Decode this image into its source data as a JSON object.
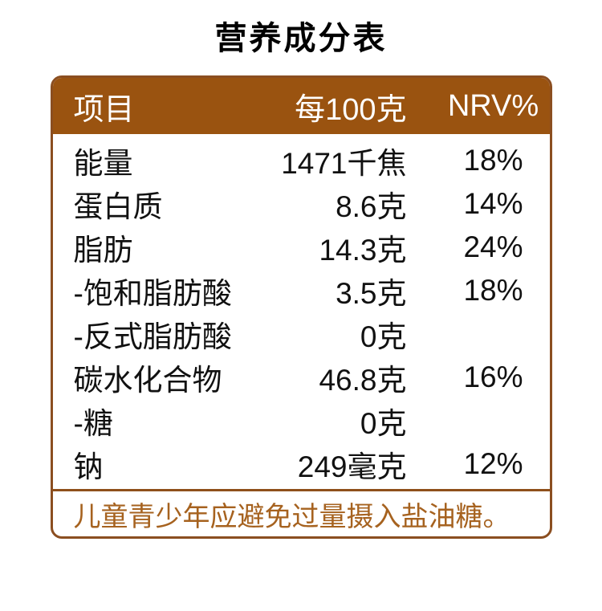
{
  "title": "营养成分表",
  "colors": {
    "header_bg": "#9A5310",
    "header_text": "#FFFFFF",
    "card_border": "#8B4E20",
    "divider": "#8F4F1B",
    "footnote_text": "#A6621F",
    "body_text": "#111111",
    "page_bg": "#FFFFFF"
  },
  "table": {
    "headers": {
      "item": "项目",
      "per100g": "每100克",
      "nrv": "NRV%"
    },
    "rows": [
      {
        "item": "能量",
        "per100g": "1471千焦",
        "nrv": "18%"
      },
      {
        "item": "蛋白质",
        "per100g": "8.6克",
        "nrv": "14%"
      },
      {
        "item": "脂肪",
        "per100g": "14.3克",
        "nrv": "24%"
      },
      {
        "item": "-饱和脂肪酸",
        "per100g": "3.5克",
        "nrv": "18%"
      },
      {
        "item": "-反式脂肪酸",
        "per100g": "0克",
        "nrv": ""
      },
      {
        "item": "碳水化合物",
        "per100g": "46.8克",
        "nrv": "16%"
      },
      {
        "item": "-糖",
        "per100g": "0克",
        "nrv": ""
      },
      {
        "item": "钠",
        "per100g": "249毫克",
        "nrv": "12%"
      }
    ],
    "footnote": "儿童青少年应避免过量摄入盐油糖。"
  }
}
